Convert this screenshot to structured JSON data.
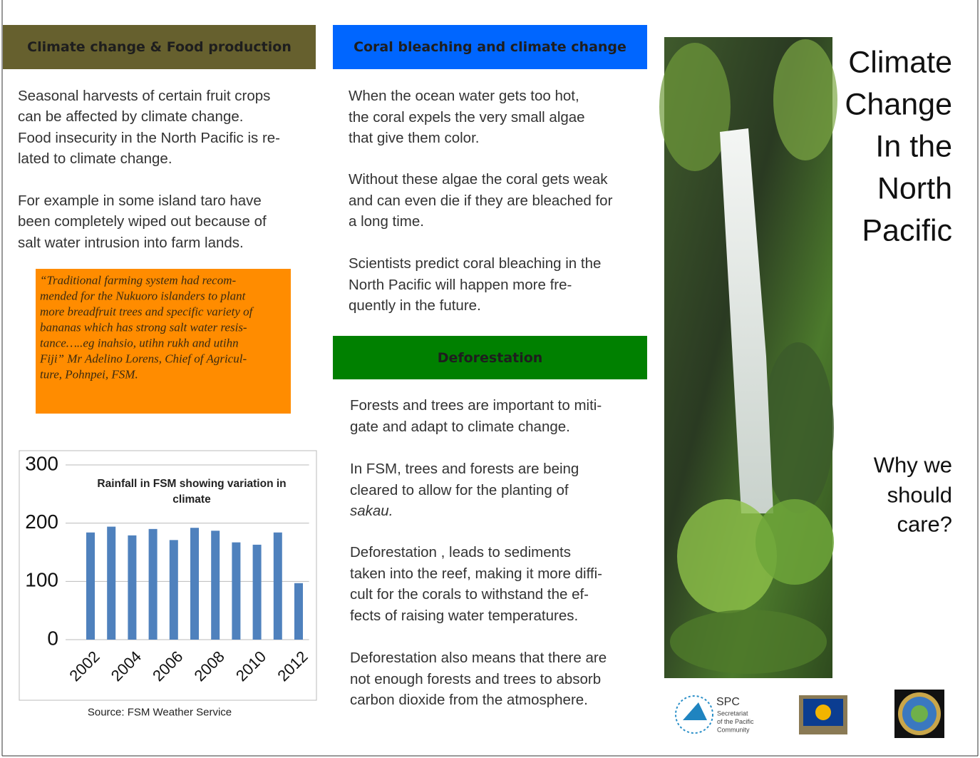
{
  "left": {
    "header": "Climate change & Food production",
    "paragraphs": [
      [
        "Seasonal harvests of certain fruit crops",
        "can be affected by climate change.",
        "Food insecurity in the North Pacific is re-",
        "lated to climate change."
      ],
      [
        "For example in some island taro have",
        "been completely wiped out because of",
        "salt water intrusion into farm lands."
      ]
    ],
    "quote": [
      "“Traditional farming system had recom-",
      "mended for the Nukuoro islanders to plant",
      "more breadfruit trees and specific variety of",
      "bananas which has strong salt water resis-",
      "tance…..eg inahsio, utihn rukh and utihn",
      "Fiji” Mr Adelino Lorens, Chief of Agricul-",
      "ture, Pohnpei, FSM."
    ],
    "source": "Source: FSM Weather Service"
  },
  "middle": {
    "header": "Coral bleaching and climate change",
    "paragraphs": [
      [
        "When  the ocean water gets too hot,",
        "the coral expels the very small algae",
        "that give them color."
      ],
      [
        "Without these algae the coral gets weak",
        "and can even die if they are bleached for",
        "a long time."
      ],
      [
        "Scientists predict coral bleaching in the",
        "North Pacific will happen more fre-",
        "quently in the future."
      ]
    ],
    "header2": "Deforestation",
    "paragraphs2": [
      [
        "Forests and trees are important to miti-",
        "gate and adapt to climate change."
      ],
      [
        "In FSM, trees and forests are being",
        "cleared to allow for the planting of",
        "sakau."
      ],
      [
        "Deforestation , leads to sediments",
        "taken into the reef, making it more diffi-",
        "cult for the corals to withstand the ef-",
        "fects of raising water temperatures."
      ],
      [
        "Deforestation also means that there are",
        "not enough forests and trees to absorb",
        "carbon dioxide from the atmosphere."
      ]
    ]
  },
  "right": {
    "title": [
      "Climate",
      "Change",
      "In the",
      "North",
      "Pacific"
    ],
    "subtitle": [
      "Why we",
      "should",
      "care?"
    ],
    "logo": {
      "name": "SPC",
      "text": [
        "Secretariat",
        "of the Pacific",
        "Community"
      ]
    }
  },
  "chart_data": {
    "type": "bar",
    "title": [
      "Rainfall in FSM showing variation in",
      "climate"
    ],
    "categories": [
      "2002",
      null,
      "2004",
      null,
      "2006",
      null,
      "2008",
      null,
      "2010",
      null,
      "2012"
    ],
    "values": [
      184,
      194,
      179,
      190,
      171,
      192,
      187,
      167,
      163,
      184,
      97
    ],
    "color": "#4f81bd",
    "ylim": [
      0,
      300
    ],
    "yticks": [
      0,
      100,
      200,
      300
    ],
    "grid": true
  }
}
